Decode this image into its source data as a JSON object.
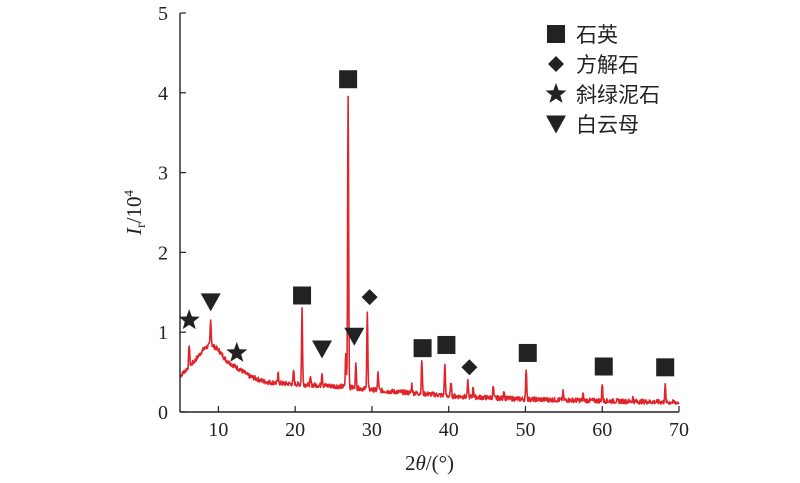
{
  "chart_data": {
    "type": "line",
    "xlabel": {
      "prefix": "2",
      "var": "θ",
      "suffix": "/(°)"
    },
    "ylabel": {
      "var": "I",
      "sub": "r",
      "unit": "/10",
      "exp": "4"
    },
    "xlim": [
      5,
      70
    ],
    "ylim": [
      0,
      5
    ],
    "x_ticks": [
      "10",
      "20",
      "30",
      "40",
      "50",
      "60",
      "70"
    ],
    "y_ticks": [
      "0",
      "1",
      "2",
      "3",
      "4",
      "5"
    ],
    "line_color": "#e0242a",
    "legend": [
      {
        "symbol": "square",
        "label": "石英"
      },
      {
        "symbol": "diamond",
        "label": "方解石"
      },
      {
        "symbol": "star",
        "label": "斜绿泥石"
      },
      {
        "symbol": "triangle-down",
        "label": "白云母"
      }
    ],
    "baseline": [
      [
        5.0,
        0.45
      ],
      [
        5.5,
        0.5
      ],
      [
        6.0,
        0.55
      ],
      [
        7.0,
        0.65
      ],
      [
        8.0,
        0.78
      ],
      [
        9.0,
        0.85
      ],
      [
        10.0,
        0.78
      ],
      [
        11.0,
        0.65
      ],
      [
        12.0,
        0.58
      ],
      [
        13.0,
        0.52
      ],
      [
        14.0,
        0.45
      ],
      [
        16.0,
        0.38
      ],
      [
        18.0,
        0.36
      ],
      [
        20.0,
        0.35
      ],
      [
        22.0,
        0.34
      ],
      [
        24.0,
        0.33
      ],
      [
        26.0,
        0.32
      ],
      [
        28.0,
        0.3
      ],
      [
        30.0,
        0.28
      ],
      [
        32.0,
        0.26
      ],
      [
        35.0,
        0.24
      ],
      [
        38.0,
        0.22
      ],
      [
        40.0,
        0.2
      ],
      [
        45.0,
        0.18
      ],
      [
        50.0,
        0.16
      ],
      [
        55.0,
        0.15
      ],
      [
        60.0,
        0.14
      ],
      [
        65.0,
        0.13
      ],
      [
        70.0,
        0.12
      ]
    ],
    "peaks": [
      [
        6.2,
        0.85
      ],
      [
        9.0,
        1.15
      ],
      [
        12.5,
        0.55
      ],
      [
        17.8,
        0.48
      ],
      [
        19.8,
        0.52
      ],
      [
        20.9,
        1.3
      ],
      [
        22.0,
        0.42
      ],
      [
        23.5,
        0.5
      ],
      [
        26.6,
        0.75
      ],
      [
        26.9,
        3.98
      ],
      [
        27.9,
        0.6
      ],
      [
        29.4,
        1.25
      ],
      [
        30.8,
        0.5
      ],
      [
        35.2,
        0.35
      ],
      [
        36.5,
        0.65
      ],
      [
        39.5,
        0.62
      ],
      [
        40.3,
        0.38
      ],
      [
        42.5,
        0.38
      ],
      [
        43.2,
        0.32
      ],
      [
        45.8,
        0.32
      ],
      [
        47.2,
        0.28
      ],
      [
        50.1,
        0.55
      ],
      [
        54.9,
        0.25
      ],
      [
        57.5,
        0.22
      ],
      [
        60.0,
        0.35
      ],
      [
        64.0,
        0.18
      ],
      [
        68.2,
        0.33
      ]
    ],
    "annotations": [
      {
        "symbol": "star",
        "x": 6.2,
        "y": 1.15
      },
      {
        "symbol": "triangle-down",
        "x": 9.0,
        "y": 1.38
      },
      {
        "symbol": "star",
        "x": 12.4,
        "y": 0.74
      },
      {
        "symbol": "square",
        "x": 20.9,
        "y": 1.46
      },
      {
        "symbol": "triangle-down",
        "x": 23.5,
        "y": 0.79
      },
      {
        "symbol": "triangle-down",
        "x": 27.7,
        "y": 0.95
      },
      {
        "symbol": "square",
        "x": 26.9,
        "y": 4.17
      },
      {
        "symbol": "diamond",
        "x": 29.7,
        "y": 1.44
      },
      {
        "symbol": "square",
        "x": 36.6,
        "y": 0.8
      },
      {
        "symbol": "square",
        "x": 39.7,
        "y": 0.84
      },
      {
        "symbol": "diamond",
        "x": 42.7,
        "y": 0.56
      },
      {
        "symbol": "square",
        "x": 50.3,
        "y": 0.74
      },
      {
        "symbol": "square",
        "x": 60.2,
        "y": 0.57
      },
      {
        "symbol": "square",
        "x": 68.2,
        "y": 0.56
      }
    ]
  }
}
